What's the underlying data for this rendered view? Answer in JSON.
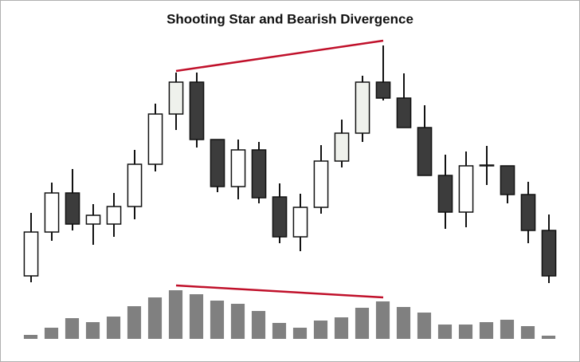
{
  "chart_data": {
    "type": "candlestick",
    "title": "Shooting Star and Bearish Divergence",
    "x": [
      1,
      2,
      3,
      4,
      5,
      6,
      7,
      8,
      9,
      10,
      11,
      12,
      13,
      14,
      15,
      16,
      17,
      18,
      19,
      20,
      21,
      22,
      23,
      24,
      25,
      26
    ],
    "xlim": [
      0.5,
      26.5
    ],
    "open": [
      14,
      69,
      118,
      79,
      79,
      101,
      154,
      217,
      257,
      185,
      126,
      172,
      113,
      63,
      100,
      158,
      193,
      257,
      237,
      200,
      140,
      94,
      152,
      152,
      116,
      71
    ],
    "high": [
      93,
      131,
      148,
      104,
      118,
      172,
      230,
      269,
      269,
      185,
      185,
      182,
      130,
      117,
      178,
      210,
      265,
      303,
      268,
      228,
      166,
      170,
      177,
      152,
      132,
      91
    ],
    "low": [
      6,
      58,
      71,
      53,
      63,
      85,
      145,
      197,
      175,
      119,
      110,
      105,
      55,
      45,
      92,
      150,
      182,
      234,
      200,
      140,
      73,
      75,
      128,
      105,
      55,
      5
    ],
    "close": [
      69,
      118,
      79,
      90,
      101,
      154,
      217,
      257,
      185,
      126,
      172,
      112,
      63,
      100,
      158,
      193,
      257,
      237,
      200,
      140,
      94,
      152,
      153,
      116,
      71,
      14
    ],
    "colors": [
      "#ffffff",
      "#ffffff",
      "#3c3c3c",
      "#ffffff",
      "#ffffff",
      "#ffffff",
      "#ffffff",
      "#eff1ec",
      "#3c3c3c",
      "#3c3c3c",
      "#ffffff",
      "#3c3c3c",
      "#3c3c3c",
      "#ffffff",
      "#ffffff",
      "#eff1ec",
      "#eff1ec",
      "#3c3c3c",
      "#3c3c3c",
      "#3c3c3c",
      "#3c3c3c",
      "#ffffff",
      "#ffffff",
      "#3c3c3c",
      "#3c3c3c",
      "#3c3c3c"
    ],
    "ylim": [
      0,
      320
    ],
    "volume": [
      5,
      14,
      26,
      21,
      28,
      41,
      52,
      61,
      56,
      48,
      44,
      35,
      20,
      14,
      23,
      27,
      39,
      47,
      40,
      33,
      18,
      18,
      21,
      24,
      16,
      4
    ],
    "volume_color": "#808080",
    "volume_ylim": [
      0,
      70
    ],
    "trendlines": [
      {
        "axis": "price",
        "x": [
          8,
          18
        ],
        "values": [
          271,
          309
        ],
        "color": "#c0102a"
      },
      {
        "axis": "volume",
        "x": [
          8,
          18
        ],
        "values": [
          67,
          52
        ],
        "color": "#c0102a"
      }
    ]
  }
}
